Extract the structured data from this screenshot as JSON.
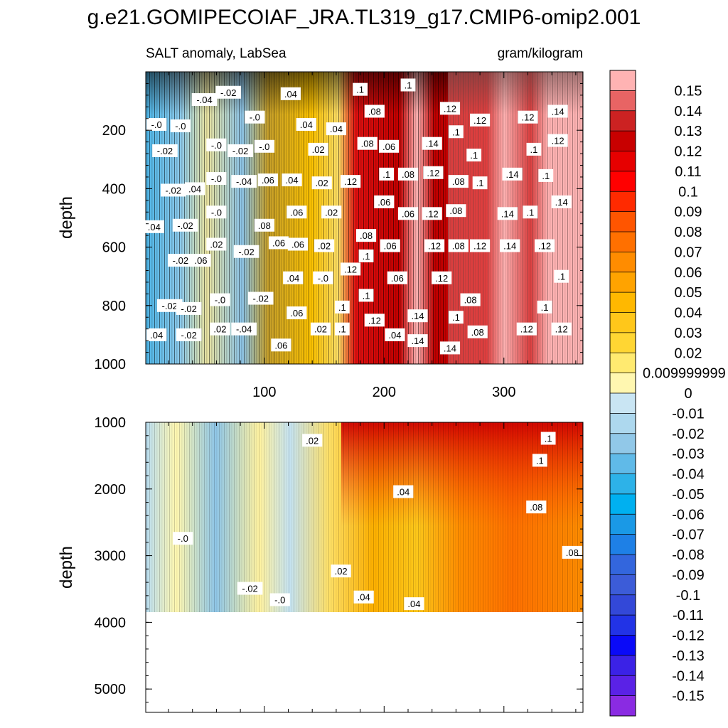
{
  "chart_data": {
    "type": "heatmap",
    "title": "g.e21.GOMIPECOIAF_JRA.TL319_g17.CMIP6-omip2.001",
    "subtitle_left": "SALT anomaly, LabSea",
    "subtitle_right": "gram/kilogram",
    "xlim": [
      1,
      366
    ],
    "x_ticks": [
      100,
      200,
      300
    ],
    "x_tick_labels": [
      "100",
      "200",
      "300"
    ],
    "panels": [
      {
        "name": "upper",
        "ylabel": "depth",
        "ylim": [
          0,
          1000
        ],
        "y_ticks": [
          200,
          400,
          600,
          800,
          1000
        ],
        "y_tick_labels": [
          "200",
          "400",
          "600",
          "800",
          "1000"
        ],
        "contour_labels": [
          {
            "x": 10,
            "depth": 180,
            "text": "-.0"
          },
          {
            "x": 30,
            "depth": 185,
            "text": "-.0"
          },
          {
            "x": 17,
            "depth": 270,
            "text": "-.02"
          },
          {
            "x": 50,
            "depth": 95,
            "text": "-.04"
          },
          {
            "x": 70,
            "depth": 70,
            "text": "-.02"
          },
          {
            "x": 92,
            "depth": 155,
            "text": "-.0"
          },
          {
            "x": 60,
            "depth": 250,
            "text": "-.0"
          },
          {
            "x": 80,
            "depth": 270,
            "text": "-.02"
          },
          {
            "x": 100,
            "depth": 255,
            "text": "-.0"
          },
          {
            "x": 122,
            "depth": 75,
            "text": ".04"
          },
          {
            "x": 135,
            "depth": 180,
            "text": ".04"
          },
          {
            "x": 160,
            "depth": 195,
            "text": ".04"
          },
          {
            "x": 145,
            "depth": 265,
            "text": ".02"
          },
          {
            "x": 180,
            "depth": 60,
            "text": ".1"
          },
          {
            "x": 220,
            "depth": 45,
            "text": ".1"
          },
          {
            "x": 192,
            "depth": 135,
            "text": ".08"
          },
          {
            "x": 255,
            "depth": 125,
            "text": ".12"
          },
          {
            "x": 280,
            "depth": 165,
            "text": ".12"
          },
          {
            "x": 320,
            "depth": 155,
            "text": ".12"
          },
          {
            "x": 345,
            "depth": 135,
            "text": ".14"
          },
          {
            "x": 260,
            "depth": 205,
            "text": ".1"
          },
          {
            "x": 186,
            "depth": 245,
            "text": ".08"
          },
          {
            "x": 204,
            "depth": 255,
            "text": ".06"
          },
          {
            "x": 240,
            "depth": 245,
            "text": ".14"
          },
          {
            "x": 275,
            "depth": 285,
            "text": ".1"
          },
          {
            "x": 325,
            "depth": 265,
            "text": ".1"
          },
          {
            "x": 345,
            "depth": 235,
            "text": ".12"
          },
          {
            "x": 24,
            "depth": 405,
            "text": "-.02"
          },
          {
            "x": 42,
            "depth": 400,
            "text": ".04"
          },
          {
            "x": 60,
            "depth": 365,
            "text": "-.0"
          },
          {
            "x": 83,
            "depth": 375,
            "text": "-.04"
          },
          {
            "x": 103,
            "depth": 370,
            "text": ".06"
          },
          {
            "x": 123,
            "depth": 370,
            "text": ".04"
          },
          {
            "x": 148,
            "depth": 380,
            "text": ".02"
          },
          {
            "x": 172,
            "depth": 375,
            "text": ".12"
          },
          {
            "x": 202,
            "depth": 350,
            "text": ".1"
          },
          {
            "x": 220,
            "depth": 350,
            "text": ".08"
          },
          {
            "x": 241,
            "depth": 345,
            "text": ".12"
          },
          {
            "x": 262,
            "depth": 375,
            "text": ".08"
          },
          {
            "x": 280,
            "depth": 380,
            "text": ".1"
          },
          {
            "x": 307,
            "depth": 350,
            "text": ".14"
          },
          {
            "x": 335,
            "depth": 355,
            "text": ".1"
          },
          {
            "x": 8,
            "depth": 530,
            "text": ".04"
          },
          {
            "x": 34,
            "depth": 525,
            "text": "-.02"
          },
          {
            "x": 60,
            "depth": 480,
            "text": "-.0"
          },
          {
            "x": 100,
            "depth": 525,
            "text": ".08"
          },
          {
            "x": 127,
            "depth": 480,
            "text": ".06"
          },
          {
            "x": 156,
            "depth": 480,
            "text": ".02"
          },
          {
            "x": 200,
            "depth": 445,
            "text": ".06"
          },
          {
            "x": 220,
            "depth": 485,
            "text": ".06"
          },
          {
            "x": 240,
            "depth": 485,
            "text": ".12"
          },
          {
            "x": 260,
            "depth": 475,
            "text": ".08"
          },
          {
            "x": 303,
            "depth": 485,
            "text": ".14"
          },
          {
            "x": 322,
            "depth": 480,
            "text": ".1"
          },
          {
            "x": 348,
            "depth": 445,
            "text": ".14"
          },
          {
            "x": 60,
            "depth": 590,
            "text": ".02"
          },
          {
            "x": 85,
            "depth": 615,
            "text": "-.02"
          },
          {
            "x": 112,
            "depth": 585,
            "text": ".06"
          },
          {
            "x": 128,
            "depth": 590,
            "text": ".06"
          },
          {
            "x": 150,
            "depth": 595,
            "text": ".02"
          },
          {
            "x": 185,
            "depth": 560,
            "text": ".08"
          },
          {
            "x": 185,
            "depth": 630,
            "text": ".1"
          },
          {
            "x": 205,
            "depth": 595,
            "text": ".06"
          },
          {
            "x": 242,
            "depth": 595,
            "text": ".12"
          },
          {
            "x": 262,
            "depth": 595,
            "text": ".08"
          },
          {
            "x": 280,
            "depth": 595,
            "text": ".12"
          },
          {
            "x": 305,
            "depth": 595,
            "text": ".14"
          },
          {
            "x": 334,
            "depth": 595,
            "text": ".12"
          },
          {
            "x": 30,
            "depth": 645,
            "text": "-.02"
          },
          {
            "x": 47,
            "depth": 645,
            "text": ".06"
          },
          {
            "x": 172,
            "depth": 675,
            "text": ".12"
          },
          {
            "x": 124,
            "depth": 705,
            "text": ".04"
          },
          {
            "x": 149,
            "depth": 705,
            "text": "-.0"
          },
          {
            "x": 211,
            "depth": 705,
            "text": ".06"
          },
          {
            "x": 248,
            "depth": 705,
            "text": ".12"
          },
          {
            "x": 348,
            "depth": 700,
            "text": ".1"
          },
          {
            "x": 21,
            "depth": 800,
            "text": "-.02"
          },
          {
            "x": 37,
            "depth": 810,
            "text": "-.02"
          },
          {
            "x": 63,
            "depth": 780,
            "text": "-.0"
          },
          {
            "x": 97,
            "depth": 775,
            "text": "-.02"
          },
          {
            "x": 185,
            "depth": 765,
            "text": ".1"
          },
          {
            "x": 272,
            "depth": 780,
            "text": ".08"
          },
          {
            "x": 127,
            "depth": 825,
            "text": ".06"
          },
          {
            "x": 165,
            "depth": 805,
            "text": ".1"
          },
          {
            "x": 192,
            "depth": 850,
            "text": ".12"
          },
          {
            "x": 228,
            "depth": 835,
            "text": ".14"
          },
          {
            "x": 260,
            "depth": 840,
            "text": ".1"
          },
          {
            "x": 334,
            "depth": 805,
            "text": ".1"
          },
          {
            "x": 10,
            "depth": 900,
            "text": ".04"
          },
          {
            "x": 37,
            "depth": 900,
            "text": "-.02"
          },
          {
            "x": 63,
            "depth": 880,
            "text": ".02"
          },
          {
            "x": 83,
            "depth": 880,
            "text": "-.04"
          },
          {
            "x": 147,
            "depth": 880,
            "text": ".02"
          },
          {
            "x": 165,
            "depth": 880,
            "text": ".1"
          },
          {
            "x": 209,
            "depth": 900,
            "text": ".04"
          },
          {
            "x": 228,
            "depth": 920,
            "text": ".14"
          },
          {
            "x": 278,
            "depth": 890,
            "text": ".08"
          },
          {
            "x": 319,
            "depth": 880,
            "text": ".12"
          },
          {
            "x": 348,
            "depth": 880,
            "text": ".12"
          },
          {
            "x": 114,
            "depth": 935,
            "text": ".06"
          },
          {
            "x": 255,
            "depth": 945,
            "text": ".14"
          }
        ]
      },
      {
        "name": "lower",
        "ylabel": "depth",
        "ylim": [
          1000,
          5350
        ],
        "y_ticks": [
          1000,
          2000,
          3000,
          4000,
          5000
        ],
        "y_tick_labels": [
          "1000",
          "2000",
          "3000",
          "4000",
          "5000"
        ],
        "data_bottom_depth": 3900,
        "contour_labels": [
          {
            "x": 140,
            "depth": 1270,
            "text": ".02"
          },
          {
            "x": 337,
            "depth": 1240,
            "text": ".1"
          },
          {
            "x": 330,
            "depth": 1570,
            "text": ".1"
          },
          {
            "x": 216,
            "depth": 2040,
            "text": ".04"
          },
          {
            "x": 327,
            "depth": 2270,
            "text": ".08"
          },
          {
            "x": 32,
            "depth": 2740,
            "text": "-.0"
          },
          {
            "x": 357,
            "depth": 2950,
            "text": ".08"
          },
          {
            "x": 164,
            "depth": 3230,
            "text": ".02"
          },
          {
            "x": 88,
            "depth": 3490,
            "text": "-.02"
          },
          {
            "x": 113,
            "depth": 3660,
            "text": "-.0"
          },
          {
            "x": 183,
            "depth": 3620,
            "text": ".04"
          },
          {
            "x": 225,
            "depth": 3720,
            "text": ".04"
          }
        ]
      }
    ],
    "colorbar": {
      "levels": [
        "0.15",
        "0.14",
        "0.13",
        "0.12",
        "0.11",
        "0.1",
        "0.09",
        "0.08",
        "0.07",
        "0.06",
        "0.05",
        "0.04",
        "0.03",
        "0.02",
        "0.009999999",
        "0",
        "-0.01",
        "-0.02",
        "-0.03",
        "-0.04",
        "-0.05",
        "-0.06",
        "-0.07",
        "-0.08",
        "-0.09",
        "-0.1",
        "-0.11",
        "-0.12",
        "-0.13",
        "-0.14",
        "-0.15"
      ],
      "colors": [
        "#FFB3B3",
        "#E86464",
        "#CC2222",
        "#C80000",
        "#E60000",
        "#FF0000",
        "#FF2A00",
        "#FF5500",
        "#FF7000",
        "#FF8C00",
        "#FFA300",
        "#FFB800",
        "#FFC71A",
        "#FFD633",
        "#FFEA70",
        "#FFF7B0",
        "#C9E5F3",
        "#ADD8EE",
        "#91C8E8",
        "#60BAE8",
        "#2DB2E8",
        "#00B0F0",
        "#1A99E6",
        "#1E80E6",
        "#3366DD",
        "#3C5CD8",
        "#3348D8",
        "#2233E6",
        "#0A0AF8",
        "#3B22E6",
        "#5A22E6",
        "#8A2BE2"
      ]
    }
  }
}
